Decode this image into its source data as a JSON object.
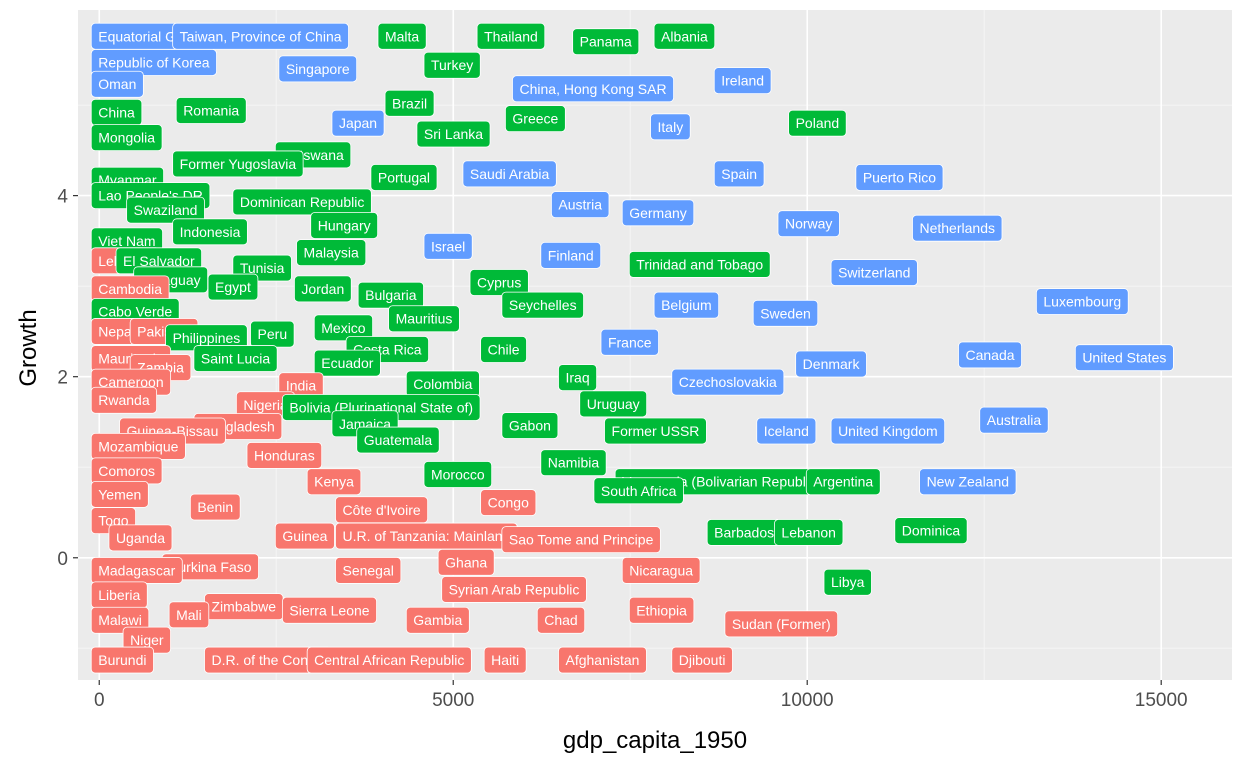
{
  "chart_data": {
    "type": "scatter",
    "title": "",
    "xlabel": "gdp_capita_1950",
    "ylabel": "Growth",
    "xlim": [
      -300,
      16000
    ],
    "ylim": [
      -1.35,
      6.05
    ],
    "x_ticks": [
      0,
      5000,
      10000,
      15000
    ],
    "y_ticks": [
      0,
      2,
      4
    ],
    "grid": true,
    "legend": "none",
    "group_colors": {
      "low": "#F8766D",
      "mid": "#00BA38",
      "high": "#619CFF"
    },
    "points": [
      {
        "label": "Equatorial Guinea",
        "x": 0,
        "y": 5.76,
        "group": "high"
      },
      {
        "label": "Taiwan, Province of China",
        "x": 1150,
        "y": 5.76,
        "group": "high"
      },
      {
        "label": "Malta",
        "x": 4050,
        "y": 5.76,
        "group": "mid"
      },
      {
        "label": "Thailand",
        "x": 5450,
        "y": 5.76,
        "group": "mid"
      },
      {
        "label": "Panama",
        "x": 6800,
        "y": 5.7,
        "group": "mid"
      },
      {
        "label": "Albania",
        "x": 7950,
        "y": 5.76,
        "group": "mid"
      },
      {
        "label": "Republic of Korea",
        "x": 0,
        "y": 5.47,
        "group": "high"
      },
      {
        "label": "Singapore",
        "x": 2650,
        "y": 5.4,
        "group": "high"
      },
      {
        "label": "Turkey",
        "x": 4700,
        "y": 5.44,
        "group": "mid"
      },
      {
        "label": "Oman",
        "x": 0,
        "y": 5.23,
        "group": "high"
      },
      {
        "label": "China, Hong Kong SAR",
        "x": 5950,
        "y": 5.18,
        "group": "high"
      },
      {
        "label": "Ireland",
        "x": 8800,
        "y": 5.27,
        "group": "high"
      },
      {
        "label": "Brazil",
        "x": 4150,
        "y": 5.02,
        "group": "mid"
      },
      {
        "label": "China",
        "x": 0,
        "y": 4.92,
        "group": "mid"
      },
      {
        "label": "Romania",
        "x": 1200,
        "y": 4.94,
        "group": "mid"
      },
      {
        "label": "Greece",
        "x": 5850,
        "y": 4.85,
        "group": "mid"
      },
      {
        "label": "Poland",
        "x": 9850,
        "y": 4.8,
        "group": "mid"
      },
      {
        "label": "Japan",
        "x": 3400,
        "y": 4.8,
        "group": "high"
      },
      {
        "label": "Italy",
        "x": 7900,
        "y": 4.76,
        "group": "high"
      },
      {
        "label": "Sri Lanka",
        "x": 4600,
        "y": 4.68,
        "group": "mid"
      },
      {
        "label": "Mongolia",
        "x": 0,
        "y": 4.64,
        "group": "mid"
      },
      {
        "label": "Botswana",
        "x": 2600,
        "y": 4.45,
        "group": "mid"
      },
      {
        "label": "Former Yugoslavia",
        "x": 1150,
        "y": 4.35,
        "group": "mid"
      },
      {
        "label": "Saudi Arabia",
        "x": 5250,
        "y": 4.24,
        "group": "high"
      },
      {
        "label": "Spain",
        "x": 8800,
        "y": 4.24,
        "group": "high"
      },
      {
        "label": "Puerto Rico",
        "x": 10800,
        "y": 4.2,
        "group": "high"
      },
      {
        "label": "Myanmar",
        "x": 0,
        "y": 4.17,
        "group": "mid"
      },
      {
        "label": "Portugal",
        "x": 3950,
        "y": 4.2,
        "group": "mid"
      },
      {
        "label": "Lao People's DR",
        "x": 0,
        "y": 4.0,
        "group": "mid"
      },
      {
        "label": "Dominican Republic",
        "x": 2000,
        "y": 3.93,
        "group": "mid"
      },
      {
        "label": "Austria",
        "x": 6500,
        "y": 3.9,
        "group": "high"
      },
      {
        "label": "Germany",
        "x": 7500,
        "y": 3.81,
        "group": "high"
      },
      {
        "label": "Swaziland",
        "x": 500,
        "y": 3.84,
        "group": "mid"
      },
      {
        "label": "Norway",
        "x": 9700,
        "y": 3.69,
        "group": "high"
      },
      {
        "label": "Netherlands",
        "x": 11600,
        "y": 3.64,
        "group": "high"
      },
      {
        "label": "Hungary",
        "x": 3100,
        "y": 3.67,
        "group": "mid"
      },
      {
        "label": "Indonesia",
        "x": 1150,
        "y": 3.6,
        "group": "mid"
      },
      {
        "label": "Viet Nam",
        "x": 0,
        "y": 3.5,
        "group": "mid"
      },
      {
        "label": "Israel",
        "x": 4700,
        "y": 3.44,
        "group": "high"
      },
      {
        "label": "Malaysia",
        "x": 2900,
        "y": 3.37,
        "group": "mid"
      },
      {
        "label": "Finland",
        "x": 6350,
        "y": 3.34,
        "group": "high"
      },
      {
        "label": "Lebanon",
        "x": 0,
        "y": 3.28,
        "group": "low"
      },
      {
        "label": "El Salvador",
        "x": 350,
        "y": 3.28,
        "group": "mid"
      },
      {
        "label": "Trinidad and Tobago",
        "x": 7600,
        "y": 3.24,
        "group": "mid"
      },
      {
        "label": "Tunisia",
        "x": 2000,
        "y": 3.2,
        "group": "mid"
      },
      {
        "label": "Switzerland",
        "x": 10450,
        "y": 3.15,
        "group": "high"
      },
      {
        "label": "Paraguay",
        "x": 600,
        "y": 3.07,
        "group": "mid"
      },
      {
        "label": "Egypt",
        "x": 1650,
        "y": 2.99,
        "group": "mid"
      },
      {
        "label": "Cyprus",
        "x": 5350,
        "y": 3.04,
        "group": "mid"
      },
      {
        "label": "Cambodia",
        "x": 0,
        "y": 2.97,
        "group": "low"
      },
      {
        "label": "Jordan",
        "x": 2870,
        "y": 2.97,
        "group": "mid"
      },
      {
        "label": "Bulgaria",
        "x": 3770,
        "y": 2.9,
        "group": "mid"
      },
      {
        "label": "Luxembourg",
        "x": 13350,
        "y": 2.83,
        "group": "high"
      },
      {
        "label": "Seychelles",
        "x": 5800,
        "y": 2.79,
        "group": "mid"
      },
      {
        "label": "Belgium",
        "x": 7950,
        "y": 2.79,
        "group": "high"
      },
      {
        "label": "Cabo Verde",
        "x": 0,
        "y": 2.72,
        "group": "mid"
      },
      {
        "label": "Sweden",
        "x": 9350,
        "y": 2.7,
        "group": "high"
      },
      {
        "label": "Mauritius",
        "x": 4200,
        "y": 2.64,
        "group": "mid"
      },
      {
        "label": "Nepal",
        "x": 0,
        "y": 2.5,
        "group": "low"
      },
      {
        "label": "Pakistan",
        "x": 550,
        "y": 2.5,
        "group": "low"
      },
      {
        "label": "Peru",
        "x": 2250,
        "y": 2.47,
        "group": "mid"
      },
      {
        "label": "Mexico",
        "x": 3150,
        "y": 2.54,
        "group": "mid"
      },
      {
        "label": "Philippines",
        "x": 1050,
        "y": 2.43,
        "group": "mid"
      },
      {
        "label": "France",
        "x": 7200,
        "y": 2.38,
        "group": "high"
      },
      {
        "label": "Costa Rica",
        "x": 3600,
        "y": 2.3,
        "group": "mid"
      },
      {
        "label": "Chile",
        "x": 5500,
        "y": 2.3,
        "group": "mid"
      },
      {
        "label": "Canada",
        "x": 12250,
        "y": 2.24,
        "group": "high"
      },
      {
        "label": "United States",
        "x": 13900,
        "y": 2.21,
        "group": "high"
      },
      {
        "label": "Mauritania",
        "x": 0,
        "y": 2.2,
        "group": "low"
      },
      {
        "label": "Saint Lucia",
        "x": 1450,
        "y": 2.2,
        "group": "mid"
      },
      {
        "label": "Ecuador",
        "x": 3150,
        "y": 2.15,
        "group": "mid"
      },
      {
        "label": "Denmark",
        "x": 9950,
        "y": 2.14,
        "group": "high"
      },
      {
        "label": "Zambia",
        "x": 550,
        "y": 2.1,
        "group": "low"
      },
      {
        "label": "Iraq",
        "x": 6600,
        "y": 1.99,
        "group": "mid"
      },
      {
        "label": "Cameroon",
        "x": 0,
        "y": 1.94,
        "group": "low"
      },
      {
        "label": "India",
        "x": 2650,
        "y": 1.9,
        "group": "low"
      },
      {
        "label": "Czechoslovakia",
        "x": 8200,
        "y": 1.94,
        "group": "high"
      },
      {
        "label": "Colombia",
        "x": 4450,
        "y": 1.92,
        "group": "mid"
      },
      {
        "label": "Rwanda",
        "x": 0,
        "y": 1.74,
        "group": "low"
      },
      {
        "label": "Nigeria",
        "x": 2050,
        "y": 1.69,
        "group": "low"
      },
      {
        "label": "Bolivia (Plurinational State of)",
        "x": 2700,
        "y": 1.66,
        "group": "mid"
      },
      {
        "label": "Uruguay",
        "x": 6900,
        "y": 1.7,
        "group": "mid"
      },
      {
        "label": "Australia",
        "x": 12550,
        "y": 1.52,
        "group": "high"
      },
      {
        "label": "Jamaica",
        "x": 3400,
        "y": 1.48,
        "group": "mid"
      },
      {
        "label": "Gabon",
        "x": 5800,
        "y": 1.46,
        "group": "mid"
      },
      {
        "label": "Bangladesh",
        "x": 1450,
        "y": 1.45,
        "group": "low"
      },
      {
        "label": "Guinea-Bissau",
        "x": 400,
        "y": 1.4,
        "group": "low"
      },
      {
        "label": "Former USSR",
        "x": 7250,
        "y": 1.4,
        "group": "mid"
      },
      {
        "label": "Iceland",
        "x": 9400,
        "y": 1.4,
        "group": "high"
      },
      {
        "label": "United Kingdom",
        "x": 10450,
        "y": 1.4,
        "group": "high"
      },
      {
        "label": "Guatemala",
        "x": 3750,
        "y": 1.3,
        "group": "mid"
      },
      {
        "label": "Mozambique",
        "x": 0,
        "y": 1.23,
        "group": "low"
      },
      {
        "label": "Honduras",
        "x": 2200,
        "y": 1.13,
        "group": "low"
      },
      {
        "label": "Namibia",
        "x": 6350,
        "y": 1.05,
        "group": "mid"
      },
      {
        "label": "Comoros",
        "x": 0,
        "y": 0.96,
        "group": "low"
      },
      {
        "label": "Morocco",
        "x": 4700,
        "y": 0.92,
        "group": "mid"
      },
      {
        "label": "Kenya",
        "x": 3050,
        "y": 0.84,
        "group": "low"
      },
      {
        "label": "Venezuela (Bolivarian Republic of)",
        "x": 7400,
        "y": 0.84,
        "group": "mid"
      },
      {
        "label": "Argentina",
        "x": 10100,
        "y": 0.84,
        "group": "mid"
      },
      {
        "label": "New Zealand",
        "x": 11700,
        "y": 0.84,
        "group": "high"
      },
      {
        "label": "South Africa",
        "x": 7100,
        "y": 0.74,
        "group": "mid"
      },
      {
        "label": "Yemen",
        "x": 0,
        "y": 0.7,
        "group": "low"
      },
      {
        "label": "Congo",
        "x": 5500,
        "y": 0.61,
        "group": "low"
      },
      {
        "label": "Benin",
        "x": 1400,
        "y": 0.56,
        "group": "low"
      },
      {
        "label": "Côte d'Ivoire",
        "x": 3450,
        "y": 0.53,
        "group": "low"
      },
      {
        "label": "Togo",
        "x": 0,
        "y": 0.41,
        "group": "low"
      },
      {
        "label": "Dominica",
        "x": 11350,
        "y": 0.3,
        "group": "mid"
      },
      {
        "label": "Guinea",
        "x": 2600,
        "y": 0.24,
        "group": "low"
      },
      {
        "label": "U.R. of Tanzania: Mainland",
        "x": 3450,
        "y": 0.24,
        "group": "low"
      },
      {
        "label": "Barbados",
        "x": 8700,
        "y": 0.28,
        "group": "mid"
      },
      {
        "label": "Lebanon",
        "x": 9650,
        "y": 0.28,
        "group": "mid"
      },
      {
        "label": "Sao Tome and Principe",
        "x": 5800,
        "y": 0.2,
        "group": "low"
      },
      {
        "label": "Uganda",
        "x": 250,
        "y": 0.22,
        "group": "low"
      },
      {
        "label": "Burkina Faso",
        "x": 1000,
        "y": -0.1,
        "group": "low"
      },
      {
        "label": "Ghana",
        "x": 4900,
        "y": -0.05,
        "group": "low"
      },
      {
        "label": "Madagascar",
        "x": 0,
        "y": -0.14,
        "group": "low"
      },
      {
        "label": "Senegal",
        "x": 3450,
        "y": -0.14,
        "group": "low"
      },
      {
        "label": "Nicaragua",
        "x": 7500,
        "y": -0.14,
        "group": "low"
      },
      {
        "label": "Syrian Arab Republic",
        "x": 4950,
        "y": -0.35,
        "group": "low"
      },
      {
        "label": "Libya",
        "x": 10350,
        "y": -0.27,
        "group": "mid"
      },
      {
        "label": "Liberia",
        "x": 0,
        "y": -0.41,
        "group": "low"
      },
      {
        "label": "Zimbabwe",
        "x": 1600,
        "y": -0.54,
        "group": "low"
      },
      {
        "label": "Sierra Leone",
        "x": 2700,
        "y": -0.58,
        "group": "low"
      },
      {
        "label": "Ethiopia",
        "x": 7600,
        "y": -0.58,
        "group": "low"
      },
      {
        "label": "Malawi",
        "x": 0,
        "y": -0.69,
        "group": "low"
      },
      {
        "label": "Mali",
        "x": 1100,
        "y": -0.63,
        "group": "low"
      },
      {
        "label": "Gambia",
        "x": 4450,
        "y": -0.69,
        "group": "low"
      },
      {
        "label": "Chad",
        "x": 6300,
        "y": -0.69,
        "group": "low"
      },
      {
        "label": "Sudan (Former)",
        "x": 8950,
        "y": -0.73,
        "group": "low"
      },
      {
        "label": "Niger",
        "x": 450,
        "y": -0.91,
        "group": "low"
      },
      {
        "label": "Burundi",
        "x": 0,
        "y": -1.13,
        "group": "low"
      },
      {
        "label": "D.R. of the Congo",
        "x": 1600,
        "y": -1.13,
        "group": "low"
      },
      {
        "label": "Central African Republic",
        "x": 3050,
        "y": -1.13,
        "group": "low"
      },
      {
        "label": "Haiti",
        "x": 5550,
        "y": -1.13,
        "group": "low"
      },
      {
        "label": "Afghanistan",
        "x": 6600,
        "y": -1.13,
        "group": "low"
      },
      {
        "label": "Djibouti",
        "x": 8200,
        "y": -1.13,
        "group": "low"
      }
    ]
  }
}
